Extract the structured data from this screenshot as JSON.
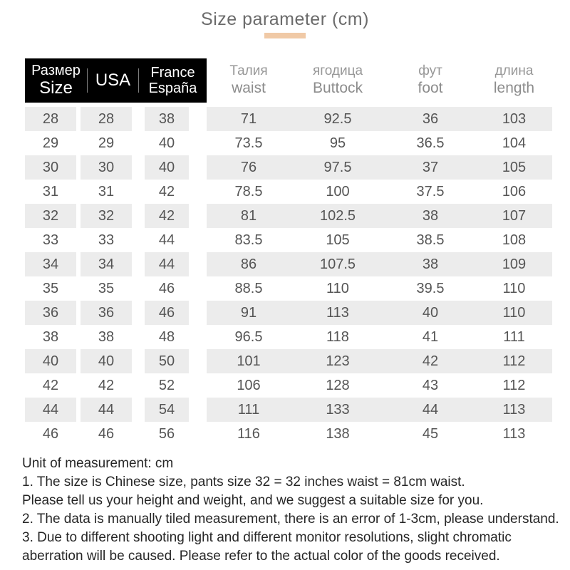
{
  "title": "Size parameter (cm)",
  "colors": {
    "accent": "#f0c9a6",
    "header_background": "#000000",
    "row_stripe": "#ececec"
  },
  "table": {
    "header": {
      "size_ru": "Размер",
      "size_en": "Size",
      "usa": "USA",
      "france": "France",
      "espana": "España",
      "waist_ru": "Талия",
      "waist_en": "waist",
      "buttock_ru": "ягодица",
      "buttock_en": "Buttock",
      "foot_ru": "фут",
      "foot_en": "foot",
      "length_ru": "длина",
      "length_en": "length"
    },
    "rows": [
      [
        28,
        28,
        38,
        71,
        92.5,
        36,
        103
      ],
      [
        29,
        29,
        40,
        73.5,
        95,
        36.5,
        104
      ],
      [
        30,
        30,
        40,
        76,
        97.5,
        37,
        105
      ],
      [
        31,
        31,
        42,
        78.5,
        100,
        37.5,
        106
      ],
      [
        32,
        32,
        42,
        81,
        102.5,
        38,
        107
      ],
      [
        33,
        33,
        44,
        83.5,
        105,
        38.5,
        108
      ],
      [
        34,
        34,
        44,
        86,
        107.5,
        38,
        109
      ],
      [
        35,
        35,
        46,
        88.5,
        110,
        39.5,
        110
      ],
      [
        36,
        36,
        46,
        91,
        113,
        40,
        110
      ],
      [
        38,
        38,
        48,
        96.5,
        118,
        41,
        111
      ],
      [
        40,
        40,
        50,
        101,
        123,
        42,
        112
      ],
      [
        42,
        42,
        52,
        106,
        128,
        43,
        112
      ],
      [
        44,
        44,
        54,
        111,
        133,
        44,
        113
      ],
      [
        46,
        46,
        56,
        116,
        138,
        45,
        113
      ]
    ]
  },
  "notes": [
    "Unit of measurement: cm",
    "1. The size is Chinese size, pants size 32 = 32 inches waist = 81cm waist.",
    "Please tell us your height and weight, and we suggest a suitable size for you.",
    "2. The data is manually tiled measurement, there is an error of 1-3cm, please understand.",
    "3. Due to different shooting light and different monitor resolutions, slight chromatic",
    "aberration will be caused. Please refer to the actual color of the goods received."
  ]
}
